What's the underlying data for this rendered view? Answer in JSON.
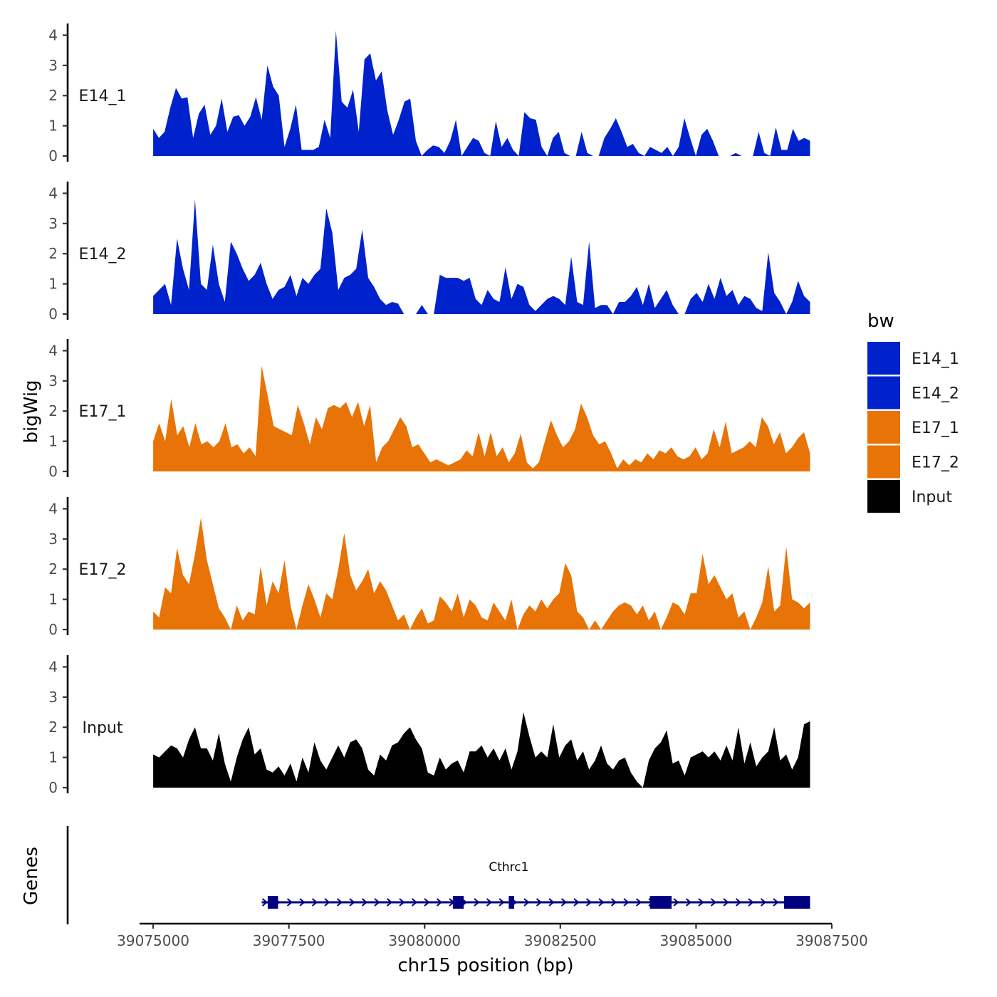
{
  "chart_data": {
    "type": "area",
    "title": "",
    "ylabel": "bigWig",
    "xlabel": "chr15 position (bp)",
    "genes_label": "Genes",
    "xlim": [
      39074750,
      39087500
    ],
    "x_range_data": [
      39075000,
      39087100
    ],
    "ylim": [
      0,
      4.2
    ],
    "y_ticks": [
      "0",
      "1",
      "2",
      "3",
      "4"
    ],
    "x_ticks": [
      {
        "value": 39075000,
        "label": "39075000"
      },
      {
        "value": 39077500,
        "label": "39077500"
      },
      {
        "value": 39080000,
        "label": "39080000"
      },
      {
        "value": 39082500,
        "label": "39082500"
      },
      {
        "value": 39085000,
        "label": "39085000"
      },
      {
        "value": 39087500,
        "label": "39087500"
      }
    ],
    "legend": {
      "title": "bw",
      "position": "right",
      "entries": [
        {
          "label": "E14_1",
          "color": "#0022cc"
        },
        {
          "label": "E14_2",
          "color": "#0022cc"
        },
        {
          "label": "E17_1",
          "color": "#e87306"
        },
        {
          "label": "E17_2",
          "color": "#e87306"
        },
        {
          "label": "Input",
          "color": "#000000"
        }
      ]
    },
    "series": [
      {
        "name": "E14_1",
        "color": "#0022cc",
        "values": [
          0.9,
          0.6,
          0.8,
          1.6,
          2.25,
          1.9,
          1.95,
          0.6,
          1.4,
          1.7,
          0.7,
          1.0,
          1.9,
          0.8,
          1.3,
          1.35,
          1.0,
          1.3,
          1.95,
          1.2,
          3.0,
          2.3,
          2.0,
          0.3,
          0.9,
          1.7,
          0.2,
          0.2,
          0.2,
          0.3,
          1.2,
          0.6,
          4.15,
          1.8,
          1.6,
          2.2,
          0.8,
          3.2,
          3.4,
          2.5,
          2.8,
          1.5,
          0.7,
          1.2,
          1.8,
          1.9,
          0.5,
          0,
          0.2,
          0.35,
          0.3,
          0.1,
          0.5,
          1.2,
          0,
          0.3,
          0.6,
          0.5,
          0.1,
          0,
          1.15,
          0.3,
          0.6,
          0.2,
          0,
          1.45,
          1.25,
          1.2,
          0.3,
          0,
          0.6,
          0.8,
          0.1,
          0,
          0,
          0.8,
          0.1,
          0,
          0,
          0.6,
          0.9,
          1.25,
          0.8,
          0.3,
          0.4,
          0.1,
          0,
          0.3,
          0.2,
          0.1,
          0.3,
          0,
          0.3,
          1.25,
          0.6,
          0,
          0.7,
          0.9,
          0.5,
          0,
          0,
          0,
          0.1,
          0,
          0,
          0,
          0.8,
          0.1,
          0,
          0.95,
          0.2,
          0.2,
          0.9,
          0.5,
          0.6,
          0.5
        ]
      },
      {
        "name": "E14_2",
        "color": "#0022cc",
        "values": [
          0.6,
          0.8,
          1.0,
          0.3,
          2.5,
          1.5,
          0.8,
          3.8,
          1.0,
          0.8,
          2.3,
          1.0,
          0.4,
          2.4,
          2.0,
          1.5,
          1.1,
          1.3,
          1.7,
          1.0,
          0.5,
          0.8,
          0.9,
          1.3,
          0.6,
          1.2,
          1.0,
          1.3,
          1.5,
          3.5,
          2.7,
          0.8,
          1.2,
          1.3,
          1.5,
          2.8,
          1.2,
          0.9,
          0.5,
          0.3,
          0.4,
          0.35,
          0,
          0,
          0,
          0.3,
          0,
          0,
          1.3,
          1.2,
          1.2,
          1.2,
          1.1,
          1.2,
          0.5,
          0.3,
          0.8,
          0.5,
          0.4,
          1.55,
          0.5,
          1.0,
          0.9,
          0.3,
          0.1,
          0.3,
          0.5,
          0.6,
          0.5,
          0.3,
          1.9,
          0.4,
          0.3,
          2.4,
          0.2,
          0.3,
          0.3,
          0,
          0.4,
          0.4,
          0.6,
          0.9,
          0.3,
          1.0,
          0.2,
          0.5,
          0.8,
          0.3,
          0,
          0,
          0.5,
          0.7,
          0.4,
          1.0,
          0.5,
          1.2,
          0.6,
          0.8,
          0.3,
          0.6,
          0.5,
          0.2,
          0.1,
          2.05,
          0.7,
          0.4,
          0,
          0.4,
          1.1,
          0.6,
          0.4
        ]
      },
      {
        "name": "E17_1",
        "color": "#e87306",
        "values": [
          1.0,
          1.6,
          1.0,
          2.4,
          1.2,
          1.5,
          0.8,
          1.6,
          0.9,
          1.0,
          0.8,
          1.0,
          1.6,
          0.8,
          0.9,
          0.6,
          0.8,
          0.5,
          3.5,
          2.5,
          1.5,
          1.4,
          1.3,
          1.2,
          2.2,
          1.6,
          0.9,
          1.8,
          1.4,
          2.1,
          2.2,
          2.1,
          2.3,
          1.8,
          2.3,
          1.5,
          2.2,
          0.3,
          0.8,
          1.0,
          1.4,
          1.8,
          1.5,
          0.8,
          0.9,
          0.6,
          0.3,
          0.4,
          0.3,
          0.2,
          0.3,
          0.4,
          0.7,
          0.5,
          1.3,
          0.5,
          1.3,
          0.5,
          0.8,
          0.3,
          0.6,
          1.25,
          0.3,
          0.1,
          0.3,
          1.0,
          1.7,
          1.2,
          0.8,
          1.0,
          1.4,
          2.25,
          1.8,
          1.2,
          0.9,
          1.0,
          0.6,
          0.1,
          0.4,
          0.2,
          0.4,
          0.3,
          0.6,
          0.4,
          0.7,
          0.6,
          0.8,
          0.5,
          0.4,
          0.5,
          0.8,
          0.4,
          0.6,
          1.4,
          0.8,
          1.65,
          0.6,
          0.7,
          0.8,
          1.0,
          0.8,
          1.8,
          1.5,
          0.9,
          1.3,
          0.6,
          0.8,
          1.1,
          1.3,
          0.6
        ]
      },
      {
        "name": "E17_2",
        "color": "#e87306",
        "values": [
          0.6,
          0.4,
          1.4,
          1.2,
          2.7,
          1.8,
          1.5,
          2.5,
          3.7,
          2.3,
          1.5,
          0.7,
          0.4,
          0,
          0.8,
          0.3,
          0.6,
          0.5,
          2.1,
          0.8,
          1.6,
          1.2,
          2.3,
          0.8,
          0,
          0.8,
          1.5,
          1.0,
          0.4,
          1.2,
          1.0,
          2.0,
          3.2,
          1.8,
          1.3,
          1.6,
          2.0,
          1.2,
          1.6,
          1.3,
          0.8,
          0.3,
          0.5,
          0,
          0.4,
          0.7,
          0.2,
          0.3,
          1.1,
          0.9,
          0.6,
          1.2,
          0.4,
          1.0,
          0.8,
          0.4,
          0.3,
          0.9,
          0.6,
          0.3,
          1.0,
          0,
          0.5,
          0.8,
          0.6,
          1.0,
          0.7,
          1.0,
          1.2,
          2.2,
          1.8,
          0.6,
          0.4,
          0,
          0.3,
          0,
          0.3,
          0.6,
          0.8,
          0.9,
          0.8,
          0.5,
          0.8,
          0.3,
          0.6,
          0,
          0.4,
          0.9,
          0.8,
          0.5,
          1.2,
          1.2,
          2.5,
          1.5,
          1.8,
          1.4,
          1.0,
          1.2,
          0.4,
          0.6,
          0,
          0.4,
          0.9,
          2.1,
          0.6,
          0.8,
          2.75,
          1.0,
          0.9,
          0.7,
          0.9
        ]
      },
      {
        "name": "Input",
        "color": "#000000",
        "values": [
          1.1,
          1.0,
          1.2,
          1.4,
          1.3,
          1.0,
          1.6,
          2.0,
          1.3,
          1.3,
          0.9,
          1.8,
          0.8,
          0.2,
          1.0,
          1.6,
          2.0,
          1.1,
          1.3,
          0.6,
          0.5,
          0.7,
          0.4,
          0.8,
          0.2,
          1.0,
          0.5,
          1.5,
          0.9,
          0.6,
          1.0,
          1.4,
          1.0,
          1.5,
          1.6,
          1.3,
          0.6,
          0.4,
          1.1,
          0.9,
          1.4,
          1.5,
          1.8,
          2.0,
          1.6,
          1.3,
          0.5,
          0.4,
          1.0,
          0.6,
          0.8,
          0.9,
          0.5,
          1.2,
          1.2,
          1.4,
          1.0,
          1.3,
          0.9,
          1.3,
          0.6,
          1.2,
          2.5,
          1.7,
          1.0,
          1.2,
          1.0,
          2.1,
          1.0,
          1.4,
          1.6,
          0.9,
          1.2,
          0.6,
          0.9,
          1.4,
          0.8,
          0.6,
          0.9,
          1.0,
          0.5,
          0.2,
          0,
          0.9,
          1.3,
          1.5,
          1.9,
          0.8,
          0.9,
          0.4,
          1.0,
          1.1,
          1.2,
          1.0,
          1.2,
          0.9,
          1.4,
          0.9,
          2.0,
          0.8,
          1.5,
          0.7,
          1.0,
          1.2,
          2.0,
          0.9,
          1.1,
          0.6,
          1.0,
          2.1,
          2.2
        ]
      }
    ],
    "gene_track": {
      "gene_name": "Cthrc1",
      "color": "#000080",
      "strand": "+",
      "tx_start": 39077000,
      "tx_end": 39087100,
      "exons": [
        {
          "start": 39077110,
          "end": 39077300
        },
        {
          "start": 39080520,
          "end": 39080720
        },
        {
          "start": 39081550,
          "end": 39081650
        },
        {
          "start": 39084150,
          "end": 39084550
        },
        {
          "start": 39086620,
          "end": 39087100
        }
      ]
    }
  }
}
